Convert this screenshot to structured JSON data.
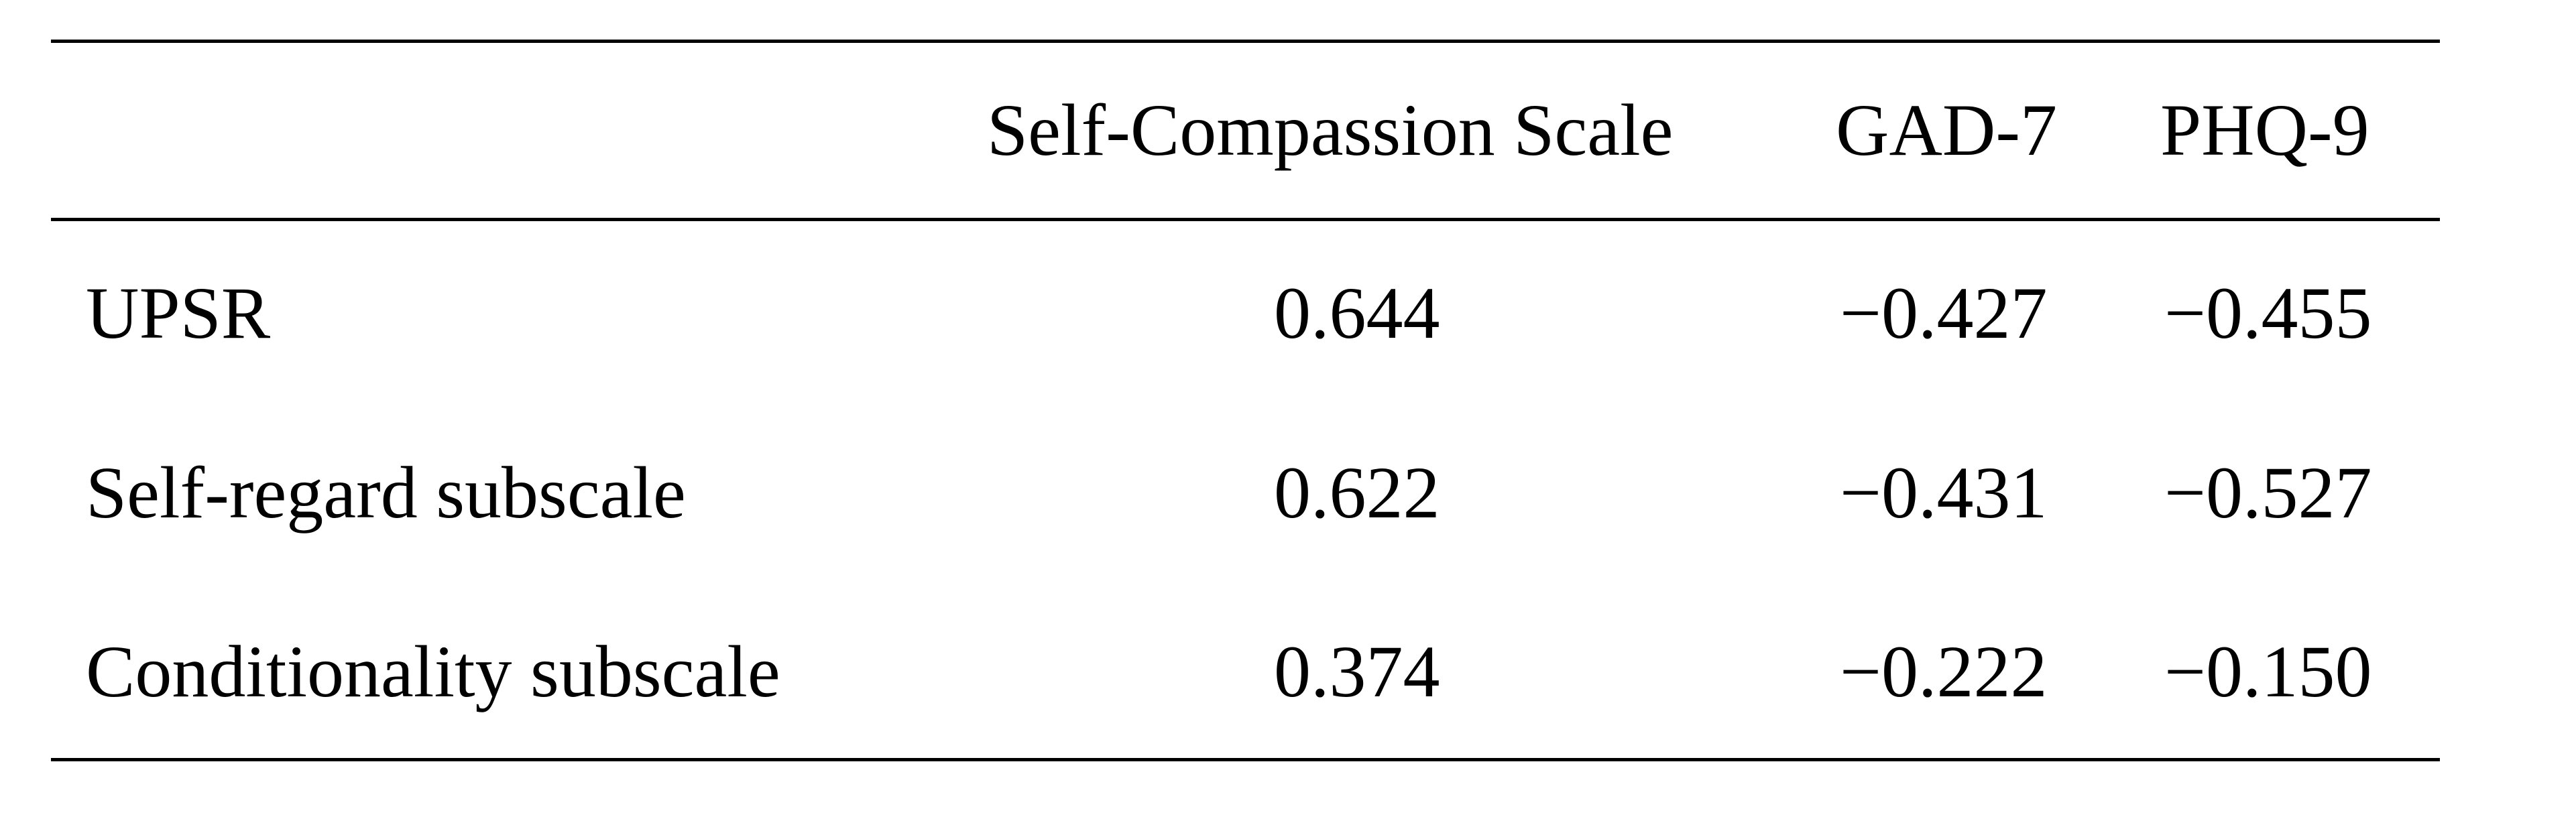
{
  "table": {
    "headers": [
      "",
      "Self-Compassion Scale",
      "GAD-7",
      "PHQ-9"
    ],
    "rows": [
      {
        "label": "UPSR",
        "scs": "0.644",
        "gad": "−0.427",
        "phq": "−0.455"
      },
      {
        "label": "Self-regard subscale",
        "scs": "0.622",
        "gad": "−0.431",
        "phq": "−0.527"
      },
      {
        "label": "Conditionality subscale",
        "scs": "0.374",
        "gad": "−0.222",
        "phq": "−0.150"
      }
    ]
  }
}
